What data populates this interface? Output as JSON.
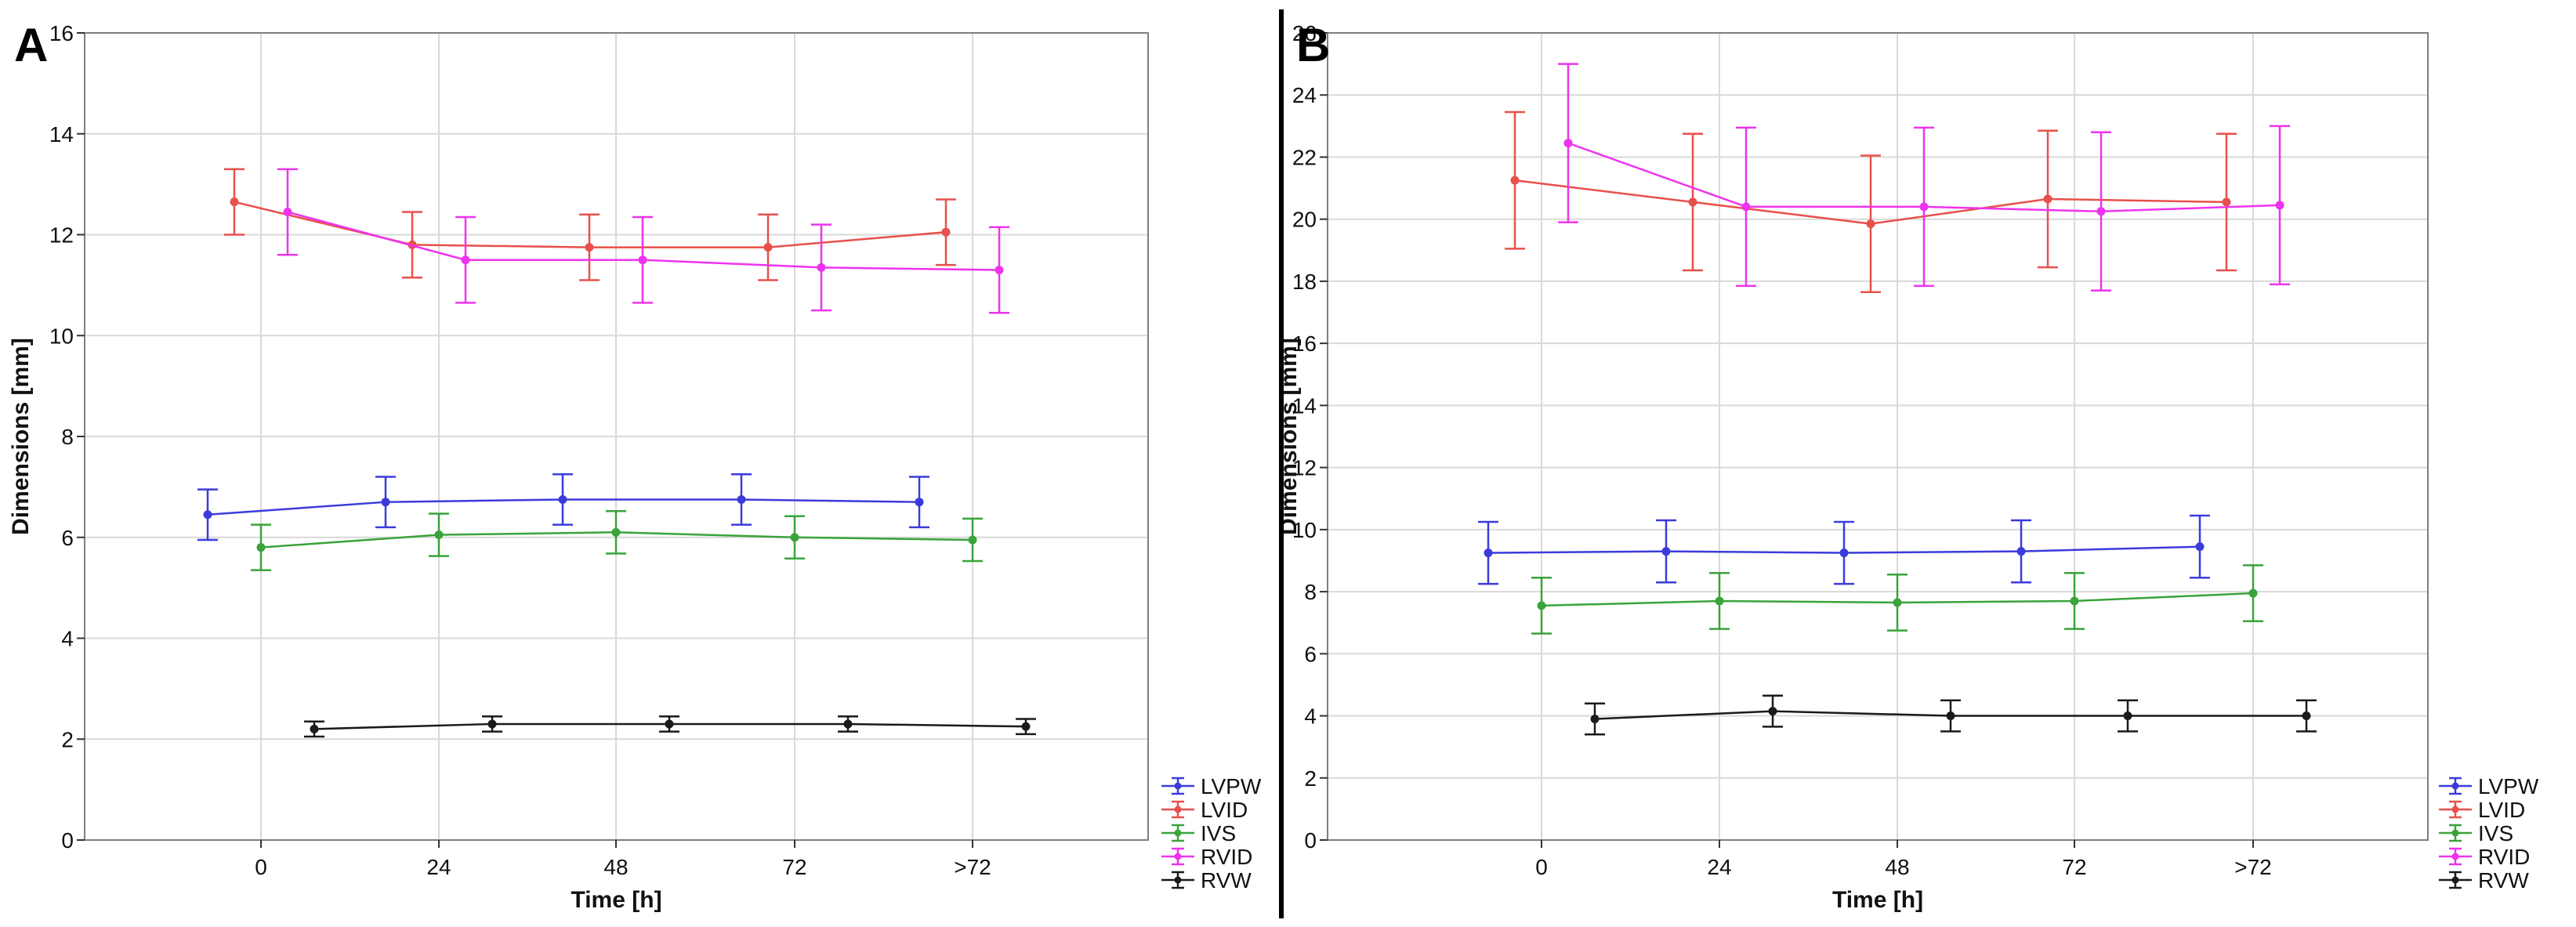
{
  "panels": [
    {
      "label": "A",
      "chart_data": {
        "type": "line",
        "title": "",
        "xlabel": "Time [h]",
        "ylabel": "Dimensions [mm]",
        "categories": [
          "0",
          "24",
          "48",
          "72",
          ">72"
        ],
        "ylim": [
          0,
          16
        ],
        "yticks": [
          0,
          2,
          4,
          6,
          8,
          10,
          12,
          14,
          16
        ],
        "grid": true,
        "legend": "bottom-right, outside",
        "series": [
          {
            "name": "LVPW",
            "color": "#3b3bdc",
            "values": [
              6.45,
              6.7,
              6.75,
              6.75,
              6.7
            ],
            "err": [
              0.5,
              0.5,
              0.5,
              0.5,
              0.5
            ]
          },
          {
            "name": "LVID",
            "color": "#e8504b",
            "values": [
              12.65,
              11.8,
              11.75,
              11.75,
              12.05
            ],
            "err": [
              0.65,
              0.65,
              0.65,
              0.65,
              0.65
            ]
          },
          {
            "name": "IVS",
            "color": "#3aa33a",
            "values": [
              5.8,
              6.05,
              6.1,
              6.0,
              5.95
            ],
            "err": [
              0.45,
              0.42,
              0.42,
              0.42,
              0.42
            ]
          },
          {
            "name": "RVID",
            "color": "#ee33ee",
            "values": [
              12.45,
              11.5,
              11.5,
              11.35,
              11.3
            ],
            "err": [
              0.85,
              0.85,
              0.85,
              0.85,
              0.85
            ]
          },
          {
            "name": "RVW",
            "color": "#1a1a1a",
            "values": [
              2.2,
              2.3,
              2.3,
              2.3,
              2.25
            ],
            "err": [
              0.15,
              0.15,
              0.15,
              0.15,
              0.15
            ]
          }
        ]
      }
    },
    {
      "label": "B",
      "chart_data": {
        "type": "line",
        "title": "",
        "xlabel": "Time [h]",
        "ylabel": "Dimensions [mm]",
        "categories": [
          "0",
          "24",
          "48",
          "72",
          ">72"
        ],
        "ylim": [
          0,
          26
        ],
        "yticks": [
          0,
          2,
          4,
          6,
          8,
          10,
          12,
          14,
          16,
          18,
          20,
          22,
          24,
          26
        ],
        "grid": true,
        "legend": "bottom-right, outside",
        "series": [
          {
            "name": "LVPW",
            "color": "#3b3bdc",
            "values": [
              9.25,
              9.3,
              9.25,
              9.3,
              9.45
            ],
            "err": [
              1.0,
              1.0,
              1.0,
              1.0,
              1.0
            ]
          },
          {
            "name": "LVID",
            "color": "#e8504b",
            "values": [
              21.25,
              20.55,
              19.85,
              20.65,
              20.55
            ],
            "err": [
              2.2,
              2.2,
              2.2,
              2.2,
              2.2
            ]
          },
          {
            "name": "IVS",
            "color": "#3aa33a",
            "values": [
              7.55,
              7.7,
              7.65,
              7.7,
              7.95
            ],
            "err": [
              0.9,
              0.9,
              0.9,
              0.9,
              0.9
            ]
          },
          {
            "name": "RVID",
            "color": "#ee33ee",
            "values": [
              22.45,
              20.4,
              20.4,
              20.25,
              20.45
            ],
            "err": [
              2.55,
              2.55,
              2.55,
              2.55,
              2.55
            ]
          },
          {
            "name": "RVW",
            "color": "#1a1a1a",
            "values": [
              3.9,
              4.15,
              4.0,
              4.0,
              4.0
            ],
            "err": [
              0.5,
              0.5,
              0.5,
              0.5,
              0.5
            ]
          }
        ]
      }
    }
  ]
}
